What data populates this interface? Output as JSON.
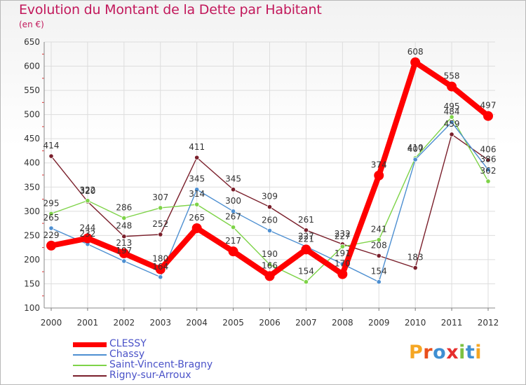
{
  "title": "Evolution du Montant de la Dette par Habitant",
  "subtitle": "(en €)",
  "logo": {
    "letters": [
      "P",
      "r",
      "o",
      "x",
      "i",
      "t",
      "i"
    ],
    "colors": [
      "#f5a623",
      "#e94e1b",
      "#3f8fd2",
      "#e62e2d",
      "#7cc142",
      "#3f8fd2",
      "#f5a623"
    ]
  },
  "chart_data": {
    "type": "line",
    "x": [
      "2000",
      "2001",
      "2002",
      "2003",
      "2004",
      "2005",
      "2006",
      "2007",
      "2008",
      "2009",
      "2010",
      "2011",
      "2012"
    ],
    "ylim": [
      100,
      650
    ],
    "yticks": [
      100,
      150,
      200,
      250,
      300,
      350,
      400,
      450,
      500,
      550,
      600,
      650
    ],
    "grid": true,
    "legend_position": "bottom-left",
    "series": [
      {
        "name": "CLESSY",
        "color": "#ff0000",
        "values": [
          229,
          244,
          213,
          180,
          265,
          217,
          166,
          221,
          170,
          374,
          608,
          558,
          497
        ]
      },
      {
        "name": "Chassy",
        "color": "#4d8fd1",
        "values": [
          265,
          232,
          197,
          164,
          345,
          300,
          260,
          227,
          191,
          154,
          407,
          484,
          386
        ]
      },
      {
        "name": "Saint-Vincent-Bragny",
        "color": "#7ed348",
        "values": [
          295,
          322,
          286,
          307,
          314,
          267,
          190,
          154,
          227,
          241,
          410,
          495,
          362
        ]
      },
      {
        "name": "Rigny-sur-Arroux",
        "color": "#7a1f2b",
        "values": [
          414,
          320,
          248,
          252,
          411,
          345,
          309,
          261,
          232,
          208,
          183,
          459,
          406
        ]
      }
    ]
  }
}
